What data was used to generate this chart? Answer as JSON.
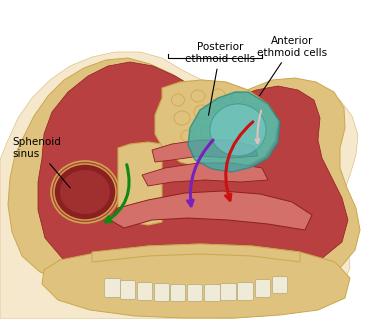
{
  "figure_size": [
    3.72,
    3.19
  ],
  "dpi": 100,
  "background": "#ffffff",
  "colors": {
    "bone_light": "#dfc27d",
    "bone_mid": "#c9a84c",
    "bone_dark": "#b8860b",
    "mucosa_red": "#b84040",
    "mucosa_bright": "#cc5544",
    "mucosa_dark": "#8b2020",
    "mucosa_pink": "#d4706a",
    "teal_main": "#3dada8",
    "teal_light": "#7dcfcc",
    "teal_dark": "#2a8882",
    "skin_outer": "#f0d8b0",
    "jaw_bone": "#d4b878",
    "teeth_col": "#f0ead8",
    "outline": "#444",
    "red_path": "#cc1111",
    "green_path": "#118811",
    "purple_path": "#7722bb",
    "white_path": "#ddbbbb",
    "black": "#111111"
  },
  "labels": {
    "anterior": "Anterior\nethmoid cells",
    "posterior": "Posterior\nethmoid cells",
    "sphenoid": "Sphenoid\nsinus"
  },
  "font_size": 7.5
}
